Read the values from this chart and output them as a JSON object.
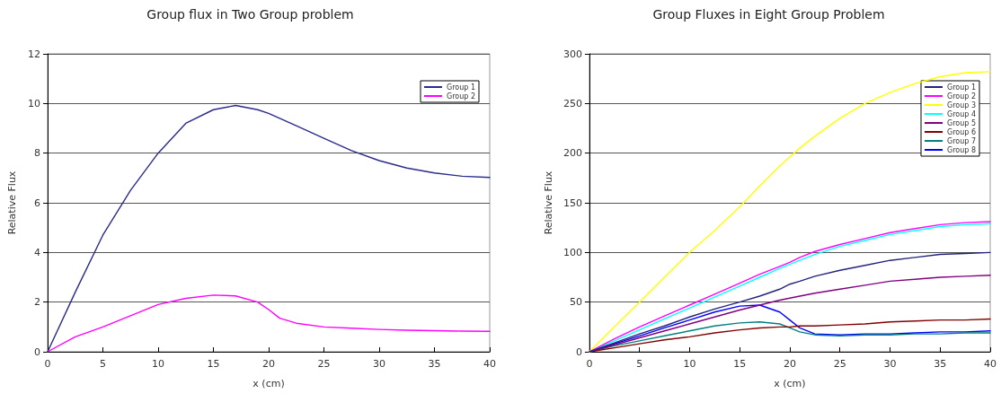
{
  "chart_data": [
    {
      "type": "line",
      "title": "Group flux in Two Group problem",
      "xlabel": "x (cm)",
      "ylabel": "Relative Flux",
      "x": [
        0,
        2.5,
        5,
        7.5,
        10,
        12.5,
        15,
        17,
        19,
        20,
        21,
        22.5,
        25,
        27.5,
        30,
        32.5,
        35,
        37.5,
        40
      ],
      "series": [
        {
          "name": "Group 1",
          "color": "#2a2a8c",
          "values": [
            0,
            2.4,
            4.7,
            6.5,
            8.0,
            9.2,
            9.75,
            9.92,
            9.75,
            9.6,
            9.4,
            9.1,
            8.6,
            8.1,
            7.7,
            7.4,
            7.2,
            7.07,
            7.02
          ]
        },
        {
          "name": "Group 2",
          "color": "#ff00ff",
          "values": [
            0,
            0.6,
            1.0,
            1.45,
            1.9,
            2.15,
            2.28,
            2.25,
            2.0,
            1.7,
            1.35,
            1.15,
            1.0,
            0.95,
            0.9,
            0.87,
            0.85,
            0.83,
            0.82
          ]
        }
      ],
      "xlim": [
        0,
        40
      ],
      "xticks": [
        0,
        5,
        10,
        15,
        20,
        25,
        30,
        35,
        40
      ],
      "ylim": [
        0,
        12
      ],
      "yticks": [
        0,
        2,
        4,
        6,
        8,
        10,
        12
      ],
      "grid": "y",
      "legend": "right",
      "marker": "none",
      "line_style": "solid"
    },
    {
      "type": "line",
      "title": "Group Fluxes in Eight Group Problem",
      "xlabel": "x (cm)",
      "ylabel": "Relative Flux",
      "x": [
        0,
        2.5,
        5,
        7.5,
        10,
        12.5,
        15,
        17,
        19,
        20,
        21,
        22.5,
        25,
        27.5,
        30,
        32.5,
        35,
        37.5,
        40
      ],
      "series": [
        {
          "name": "Group 1",
          "color": "#23237f",
          "values": [
            0,
            9,
            18,
            26,
            35,
            43,
            50,
            56,
            63,
            68,
            71,
            76,
            82,
            87,
            92,
            95,
            98,
            99,
            100
          ]
        },
        {
          "name": "Group 2",
          "color": "#ff00ff",
          "values": [
            0,
            13,
            25,
            36,
            47,
            58,
            69,
            78,
            86,
            90,
            95,
            101,
            108,
            114,
            120,
            124,
            128,
            130,
            131
          ]
        },
        {
          "name": "Group 3",
          "color": "#ffff00",
          "values": [
            0,
            25,
            50,
            75,
            100,
            122,
            146,
            167,
            187,
            196,
            205,
            217,
            235,
            250,
            261,
            270,
            277,
            281,
            282
          ]
        },
        {
          "name": "Group 4",
          "color": "#00ffff",
          "values": [
            0,
            11,
            22,
            33,
            44,
            55,
            66,
            75,
            84,
            88,
            92,
            98,
            106,
            112,
            118,
            122,
            126,
            128,
            129
          ]
        },
        {
          "name": "Group 5",
          "color": "#800080",
          "values": [
            0,
            7,
            14,
            21,
            28,
            35,
            42,
            47,
            52,
            54,
            56,
            59,
            63,
            67,
            71,
            73,
            75,
            76,
            77
          ]
        },
        {
          "name": "Group 6",
          "color": "#800000",
          "values": [
            0,
            4,
            8,
            12,
            15,
            19,
            22,
            24,
            25,
            25,
            26,
            26,
            27,
            28,
            30,
            31,
            32,
            32,
            33
          ]
        },
        {
          "name": "Group 7",
          "color": "#008080",
          "values": [
            0,
            6,
            11,
            16,
            21,
            26,
            29,
            30,
            28,
            24,
            20,
            17,
            16,
            17,
            17,
            18,
            18,
            19,
            19
          ]
        },
        {
          "name": "Group 8",
          "color": "#0000ff",
          "values": [
            0,
            8,
            16,
            24,
            32,
            40,
            46,
            47,
            40,
            32,
            24,
            18,
            17,
            18,
            18,
            19,
            20,
            20,
            21
          ]
        }
      ],
      "xlim": [
        0,
        40
      ],
      "xticks": [
        0,
        5,
        10,
        15,
        20,
        25,
        30,
        35,
        40
      ],
      "ylim": [
        0,
        300
      ],
      "yticks": [
        0,
        50,
        100,
        150,
        200,
        250,
        300
      ],
      "grid": "y",
      "legend": "right",
      "marker": "none",
      "line_style": "solid"
    }
  ]
}
